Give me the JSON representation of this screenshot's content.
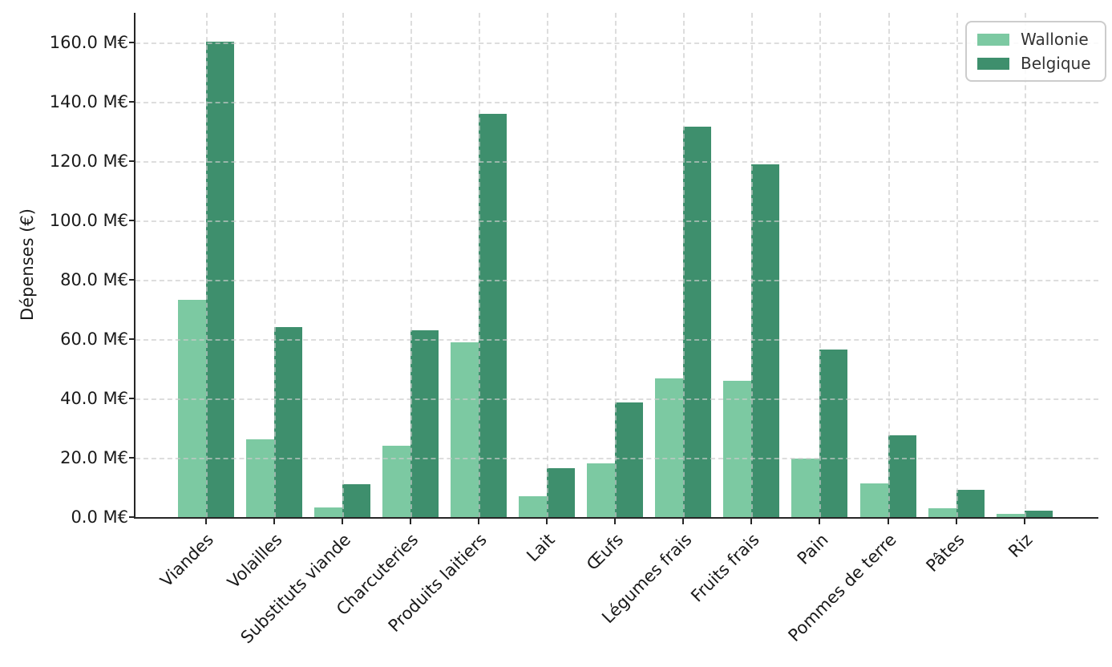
{
  "chart_data": {
    "type": "bar",
    "title": "",
    "xlabel": "",
    "ylabel": "Dépenses (€)",
    "categories": [
      "Viandes",
      "Volailles",
      "Substituts viande",
      "Charcuteries",
      "Produits laitiers",
      "Lait",
      "Œufs",
      "Légumes frais",
      "Fruits frais",
      "Pain",
      "Pommes de terre",
      "Pâtes",
      "Riz"
    ],
    "series": [
      {
        "name": "Wallonie",
        "color": "#7cc9a2",
        "values": [
          73.2,
          26.3,
          3.2,
          24.1,
          58.8,
          6.9,
          18.1,
          46.7,
          46.0,
          19.7,
          11.3,
          2.9,
          1.2
        ]
      },
      {
        "name": "Belgique",
        "color": "#3e8f6d",
        "values": [
          160.4,
          64.0,
          11.1,
          62.9,
          136.0,
          16.4,
          38.6,
          131.7,
          118.8,
          56.4,
          27.6,
          9.2,
          2.2
        ]
      }
    ],
    "ylim": [
      0,
      170
    ],
    "ytick_values": [
      0,
      20,
      40,
      60,
      80,
      100,
      120,
      140,
      160
    ],
    "ytick_labels": [
      "0.0 M€",
      "20.0 M€",
      "40.0 M€",
      "60.0 M€",
      "80.0 M€",
      "100.0 M€",
      "120.0 M€",
      "140.0 M€",
      "160.0 M€"
    ],
    "grid": "dashed",
    "grid_over_bars": true,
    "legend_position": "upper right",
    "legend_entries": [
      "Wallonie",
      "Belgique"
    ],
    "colors": {
      "wallonie": "#7cc9a2",
      "belgique": "#3e8f6d",
      "grid": "#cbcbcb",
      "spine": "#262626",
      "text": "#1a1a1a",
      "legend_border": "#cccccc"
    }
  }
}
